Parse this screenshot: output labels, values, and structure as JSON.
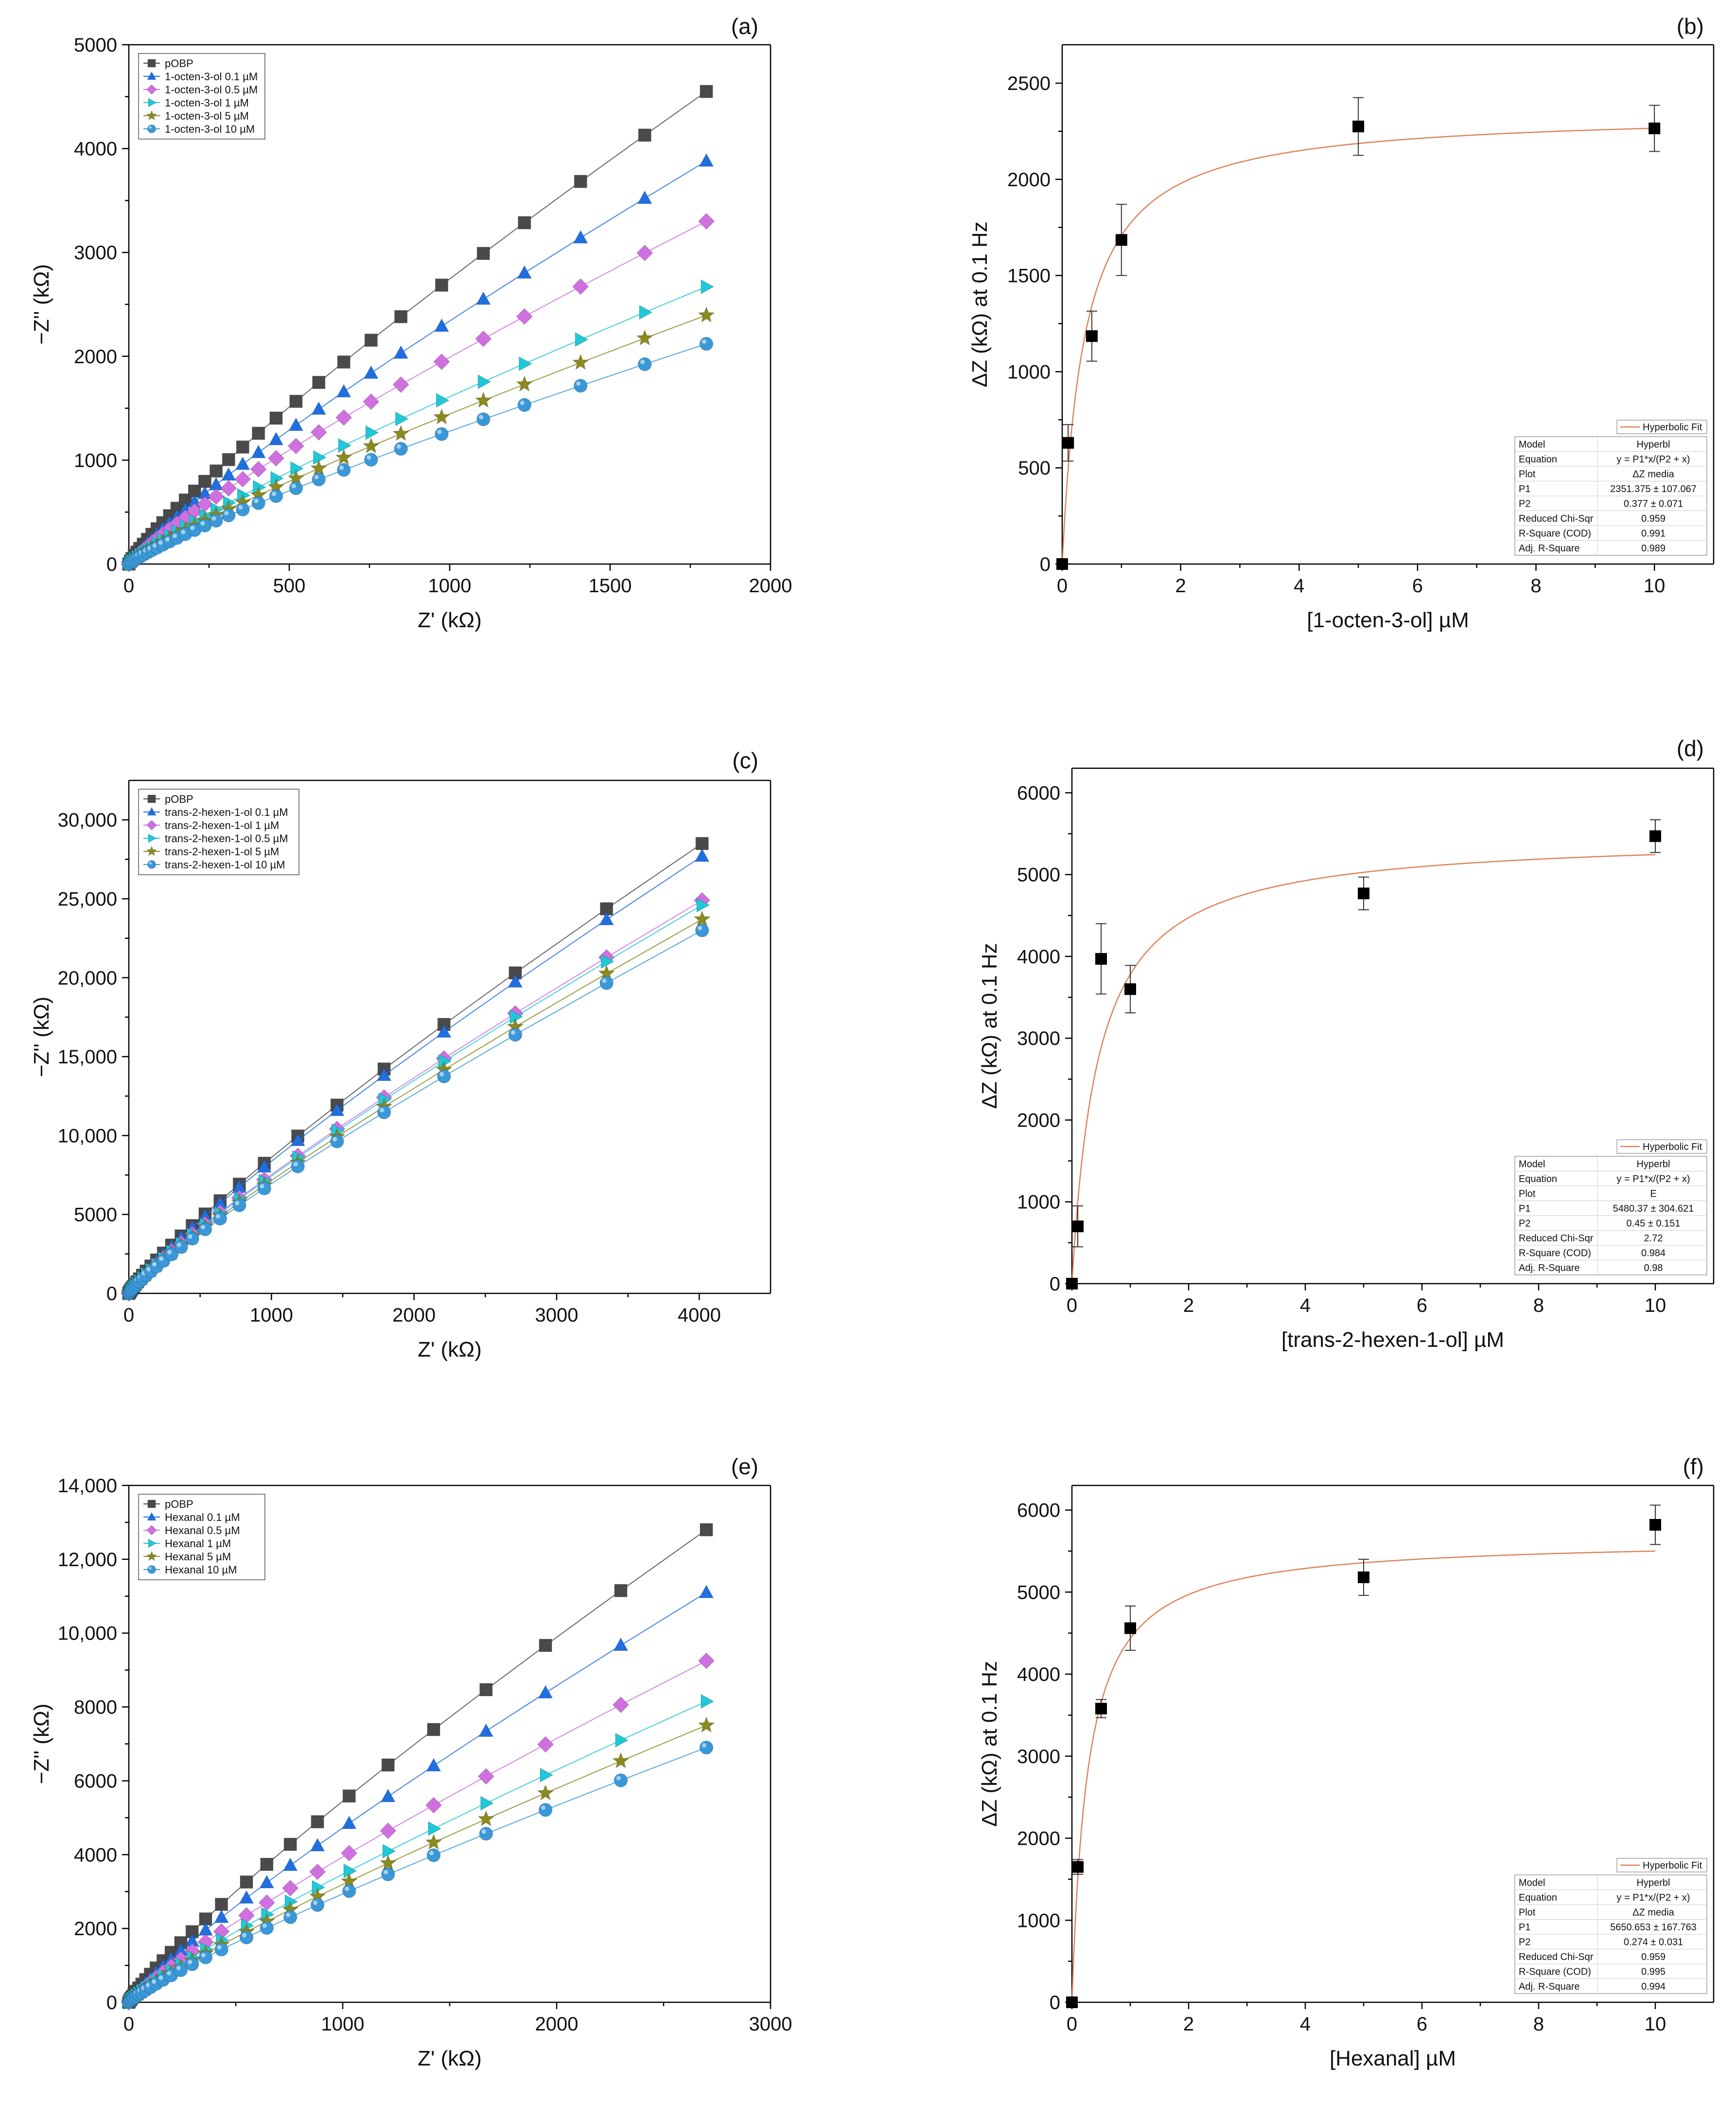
{
  "chart_data": [
    {
      "type": "line",
      "panel": "(a)",
      "xlabel": "Z' (kΩ)",
      "ylabel": "−Z'' (kΩ)",
      "xlim": [
        0,
        2000
      ],
      "ylim": [
        0,
        5000
      ],
      "xticks": [
        0,
        500,
        1000,
        1500,
        2000
      ],
      "yticks": [
        0,
        1000,
        2000,
        3000,
        4000,
        5000
      ],
      "xtick_labels": [
        "0",
        "500",
        "1000",
        "1500",
        "2000"
      ],
      "ytick_labels": [
        "0",
        "1000",
        "2000",
        "3000",
        "4000",
        "5000"
      ],
      "legend_position": "top-left",
      "x": [
        0,
        5,
        10,
        17,
        25,
        34,
        45,
        58,
        72,
        88,
        106,
        127,
        150,
        176,
        205,
        237,
        272,
        311,
        355,
        404,
        459,
        521,
        592,
        670,
        755,
        848,
        975,
        1105,
        1233,
        1408,
        1608,
        1800
      ],
      "series": [
        {
          "name": "pOBP",
          "marker": "square",
          "color": "#4a4a4a",
          "max_y": 4550
        },
        {
          "name": "1-octen-3-ol 0.1 µM",
          "marker": "triangle-up",
          "color": "#1f6fe0",
          "max_y": 3880
        },
        {
          "name": "1-octen-3-ol 0.5 µM",
          "marker": "diamond",
          "color": "#d070e0",
          "max_y": 3300
        },
        {
          "name": "1-octen-3-ol 1 µM",
          "marker": "triangle-right",
          "color": "#20c8d8",
          "max_y": 2670
        },
        {
          "name": "1-octen-3-ol 5 µM",
          "marker": "star",
          "color": "#8a8a20",
          "max_y": null
        },
        {
          "name": "1-octen-3-ol 10 µM",
          "marker": "sphere",
          "color": "#3a98d8",
          "max_y": 2120
        }
      ]
    },
    {
      "type": "scatter",
      "panel": "(b)",
      "xlabel": "[1-octen-3-ol] µM",
      "ylabel": "ΔZ (kΩ) at 0.1 Hz",
      "xlim": [
        0,
        11
      ],
      "ylim": [
        0,
        2700
      ],
      "xticks": [
        0,
        2,
        4,
        6,
        8,
        10
      ],
      "yticks": [
        0,
        500,
        1000,
        1500,
        2000,
        2500
      ],
      "xtick_labels": [
        "0",
        "2",
        "4",
        "6",
        "8",
        "10"
      ],
      "ytick_labels": [
        "0",
        "500",
        "1000",
        "1500",
        "2000",
        "2500"
      ],
      "points": [
        {
          "x": 0,
          "y": 0,
          "err": 0
        },
        {
          "x": 0.1,
          "y": 630,
          "err": 95
        },
        {
          "x": 0.5,
          "y": 1185,
          "err": 130
        },
        {
          "x": 1,
          "y": 1685,
          "err": 185
        },
        {
          "x": 5,
          "y": 2275,
          "err": 150
        },
        {
          "x": 10,
          "y": 2265,
          "err": 120
        }
      ],
      "fit": {
        "P1": 2351.375,
        "P2": 0.377,
        "color": "#e0805a"
      },
      "fit_legend": "Hyperbolic Fit",
      "fit_table": [
        [
          "Model",
          "Hyperbl"
        ],
        [
          "Equation",
          "y = P1*x/(P2 + x)"
        ],
        [
          "Plot",
          "ΔZ media"
        ],
        [
          "P1",
          "2351.375 ± 107.067"
        ],
        [
          "P2",
          "0.377 ± 0.071"
        ],
        [
          "Reduced Chi-Sqr",
          "0.959"
        ],
        [
          "R-Square (COD)",
          "0.991"
        ],
        [
          "Adj. R-Square",
          "0.989"
        ]
      ]
    },
    {
      "type": "line",
      "panel": "(c)",
      "xlabel": "Z' (kΩ)",
      "ylabel": "−Z'' (kΩ)",
      "xlim": [
        0,
        4500
      ],
      "ylim": [
        0,
        32500
      ],
      "xticks": [
        0,
        1000,
        2000,
        3000,
        4000
      ],
      "yticks": [
        0,
        5000,
        10000,
        15000,
        20000,
        25000,
        30000
      ],
      "xtick_labels": [
        "0",
        "1000",
        "2000",
        "3000",
        "4000"
      ],
      "ytick_labels": [
        "0",
        "5000",
        "10,000",
        "15,000",
        "20,000",
        "25,000",
        "30,000"
      ],
      "legend_position": "top-left",
      "x": [
        0,
        4,
        8,
        14,
        21,
        30,
        42,
        56,
        74,
        96,
        122,
        155,
        195,
        243,
        300,
        367,
        445,
        535,
        640,
        775,
        950,
        1185,
        1460,
        1790,
        2210,
        2710,
        3350,
        4020
      ],
      "series": [
        {
          "name": "pOBP",
          "marker": "square",
          "color": "#4a4a4a",
          "max_y": 28500
        },
        {
          "name": "trans-2-hexen-1-ol 0.1 µM",
          "marker": "triangle-up",
          "color": "#1f6fe0",
          "max_y": 27700
        },
        {
          "name": "trans-2-hexen-1-ol 1 µM",
          "marker": "diamond",
          "color": "#d070e0",
          "max_y": 24900
        },
        {
          "name": "trans-2-hexen-1-ol 0.5 µM",
          "marker": "triangle-right",
          "color": "#20c8d8",
          "max_y": 24600
        },
        {
          "name": "trans-2-hexen-1-ol 5 µM",
          "marker": "star",
          "color": "#8a8a20",
          "max_y": 23700
        },
        {
          "name": "trans-2-hexen-1-ol 10 µM",
          "marker": "sphere",
          "color": "#3a98d8",
          "max_y": 23000
        }
      ]
    },
    {
      "type": "scatter",
      "panel": "(d)",
      "xlabel": "[trans-2-hexen-1-ol] µM",
      "ylabel": "ΔZ (kΩ) at 0.1 Hz",
      "xlim": [
        0,
        11
      ],
      "ylim": [
        0,
        6300
      ],
      "xticks": [
        0,
        2,
        4,
        6,
        8,
        10
      ],
      "yticks": [
        0,
        1000,
        2000,
        3000,
        4000,
        5000,
        6000
      ],
      "xtick_labels": [
        "0",
        "2",
        "4",
        "6",
        "8",
        "10"
      ],
      "ytick_labels": [
        "0",
        "1000",
        "2000",
        "3000",
        "4000",
        "5000",
        "6000"
      ],
      "points": [
        {
          "x": 0,
          "y": 0,
          "err": 0
        },
        {
          "x": 0.1,
          "y": 700,
          "err": 250
        },
        {
          "x": 0.5,
          "y": 3970,
          "err": 430
        },
        {
          "x": 1,
          "y": 3600,
          "err": 290
        },
        {
          "x": 5,
          "y": 4770,
          "err": 200
        },
        {
          "x": 10,
          "y": 5470,
          "err": 200
        }
      ],
      "fit": {
        "P1": 5480.37,
        "P2": 0.45,
        "color": "#e0805a"
      },
      "fit_legend": "Hyperbolic Fit",
      "fit_table": [
        [
          "Model",
          "Hyperbl"
        ],
        [
          "Equation",
          "y = P1*x/(P2 + x)"
        ],
        [
          "Plot",
          "E"
        ],
        [
          "P1",
          "5480.37 ± 304.621"
        ],
        [
          "P2",
          "0.45 ± 0.151"
        ],
        [
          "Reduced Chi-Sqr",
          "2.72"
        ],
        [
          "R-Square (COD)",
          "0.984"
        ],
        [
          "Adj. R-Square",
          "0.98"
        ]
      ]
    },
    {
      "type": "line",
      "panel": "(e)",
      "xlabel": "Z' (kΩ)",
      "ylabel": "−Z'' (kΩ)",
      "xlim": [
        0,
        3000
      ],
      "ylim": [
        0,
        14000
      ],
      "xticks": [
        0,
        1000,
        2000,
        3000
      ],
      "yticks": [
        0,
        2000,
        4000,
        6000,
        8000,
        10000,
        12000,
        14000
      ],
      "xtick_labels": [
        "0",
        "1000",
        "2000",
        "3000"
      ],
      "ytick_labels": [
        "0",
        "2000",
        "4000",
        "6000",
        "8000",
        "10,000",
        "12,000",
        "14,000"
      ],
      "legend_position": "top-left",
      "x": [
        0,
        5,
        10,
        16,
        24,
        34,
        46,
        61,
        79,
        101,
        128,
        160,
        198,
        243,
        296,
        359,
        433,
        550,
        645,
        755,
        882,
        1030,
        1212,
        1425,
        1670,
        1948,
        2300,
        2700
      ],
      "series": [
        {
          "name": "pOBP",
          "marker": "square",
          "color": "#4a4a4a",
          "max_y": 12800
        },
        {
          "name": "Hexanal 0.1 µM",
          "marker": "triangle-up",
          "color": "#1f6fe0",
          "max_y": 11100
        },
        {
          "name": "Hexanal 0.5 µM",
          "marker": "diamond",
          "color": "#d070e0",
          "max_y": 9250
        },
        {
          "name": "Hexanal 1 µM",
          "marker": "triangle-right",
          "color": "#20c8d8",
          "max_y": 8150
        },
        {
          "name": "Hexanal 5 µM",
          "marker": "star",
          "color": "#8a8a20",
          "max_y": 7500
        },
        {
          "name": "Hexanal 10 µM",
          "marker": "sphere",
          "color": "#3a98d8",
          "max_y": 6900
        }
      ]
    },
    {
      "type": "scatter",
      "panel": "(f)",
      "xlabel": "[Hexanal] µM",
      "ylabel": "ΔZ (kΩ) at 0.1 Hz",
      "xlim": [
        0,
        11
      ],
      "ylim": [
        0,
        6300
      ],
      "xticks": [
        0,
        2,
        4,
        6,
        8,
        10
      ],
      "yticks": [
        0,
        1000,
        2000,
        3000,
        4000,
        5000,
        6000
      ],
      "xtick_labels": [
        "0",
        "2",
        "4",
        "6",
        "8",
        "10"
      ],
      "ytick_labels": [
        "0",
        "1000",
        "2000",
        "3000",
        "4000",
        "5000",
        "6000"
      ],
      "points": [
        {
          "x": 0,
          "y": 0,
          "err": 0
        },
        {
          "x": 0.1,
          "y": 1650,
          "err": 90
        },
        {
          "x": 0.5,
          "y": 3580,
          "err": 110
        },
        {
          "x": 1,
          "y": 4560,
          "err": 270
        },
        {
          "x": 5,
          "y": 5180,
          "err": 220
        },
        {
          "x": 10,
          "y": 5820,
          "err": 240
        }
      ],
      "fit": {
        "P1": 5650.653,
        "P2": 0.274,
        "color": "#e0805a"
      },
      "fit_legend": "Hyperbolic Fit",
      "fit_table": [
        [
          "Model",
          "Hyperbl"
        ],
        [
          "Equation",
          "y = P1*x/(P2 + x)"
        ],
        [
          "Plot",
          "ΔZ media"
        ],
        [
          "P1",
          "5650.653 ± 167.763"
        ],
        [
          "P2",
          "0.274 ± 0.031"
        ],
        [
          "Reduced Chi-Sqr",
          "0.959"
        ],
        [
          "R-Square (COD)",
          "0.995"
        ],
        [
          "Adj. R-Square",
          "0.994"
        ]
      ]
    }
  ]
}
